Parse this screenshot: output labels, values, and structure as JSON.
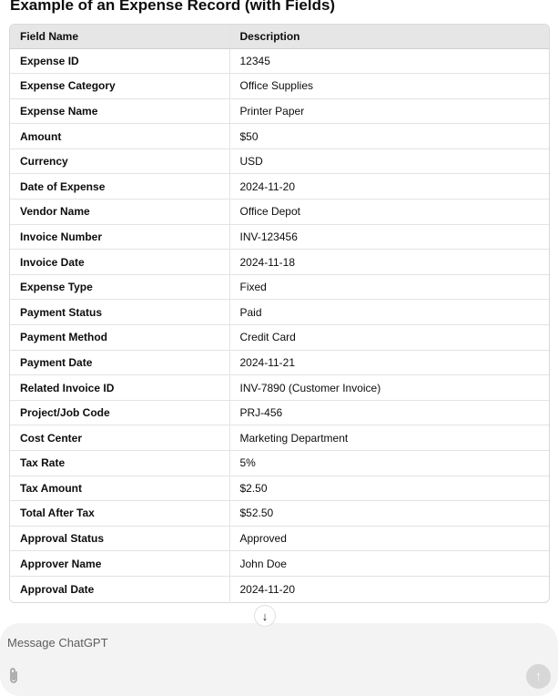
{
  "heading": "Example of an Expense Record (with Fields)",
  "table": {
    "headers": [
      "Field Name",
      "Description"
    ],
    "rows": [
      [
        "Expense ID",
        "12345"
      ],
      [
        "Expense Category",
        "Office Supplies"
      ],
      [
        "Expense Name",
        "Printer Paper"
      ],
      [
        "Amount",
        "$50"
      ],
      [
        "Currency",
        "USD"
      ],
      [
        "Date of Expense",
        "2024-11-20"
      ],
      [
        "Vendor Name",
        "Office Depot"
      ],
      [
        "Invoice Number",
        "INV-123456"
      ],
      [
        "Invoice Date",
        "2024-11-18"
      ],
      [
        "Expense Type",
        "Fixed"
      ],
      [
        "Payment Status",
        "Paid"
      ],
      [
        "Payment Method",
        "Credit Card"
      ],
      [
        "Payment Date",
        "2024-11-21"
      ],
      [
        "Related Invoice ID",
        "INV-7890 (Customer Invoice)"
      ],
      [
        "Project/Job Code",
        "PRJ-456"
      ],
      [
        "Cost Center",
        "Marketing Department"
      ],
      [
        "Tax Rate",
        "5%"
      ],
      [
        "Tax Amount",
        "$2.50"
      ],
      [
        "Total After Tax",
        "$52.50"
      ],
      [
        "Approval Status",
        "Approved"
      ],
      [
        "Approver Name",
        "John Doe"
      ],
      [
        "Approval Date",
        "2024-11-20"
      ]
    ]
  },
  "composer": {
    "placeholder": "Message ChatGPT",
    "attach_icon": "paperclip-icon",
    "send_icon": "arrow-up-icon"
  },
  "scroll_down_icon": "arrow-down-icon"
}
